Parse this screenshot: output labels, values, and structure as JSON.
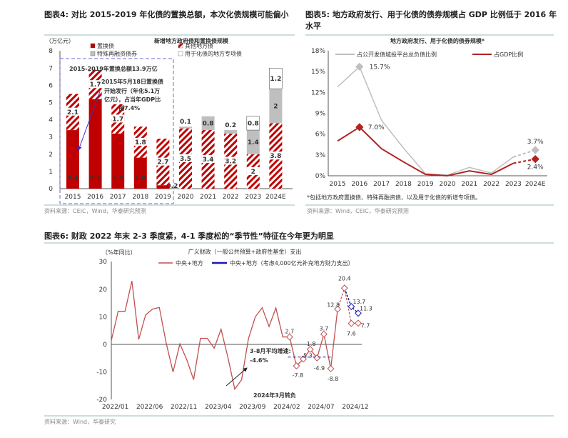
{
  "colors": {
    "red": "#c00000",
    "darkred": "#b22222",
    "gray": "#bfbfbf",
    "blue": "#1a1aaa",
    "line_red": "#c0504d"
  },
  "fig4": {
    "title": "图表4:  对比 2015-2019 年化债的置换总额，本次化债规模可能偏小",
    "source": "资料来源：CEIC，Wind，华泰研究预测",
    "chart_data": {
      "type": "bar",
      "stacked": true,
      "title": "新增地方政府债和置换债规模",
      "ylabel": "（万亿元）",
      "ylim": [
        0,
        8
      ],
      "yticks": [
        "0",
        "1",
        "2",
        "3",
        "4",
        "5",
        "6",
        "7",
        "8"
      ],
      "categories": [
        "2015",
        "2016",
        "2017",
        "2018",
        "2019",
        "2020",
        "2021",
        "2022",
        "2023",
        "2024E"
      ],
      "series": [
        {
          "name": "置换债",
          "values": [
            3.4,
            5.2,
            3.2,
            1.8,
            0.2,
            0,
            0,
            0,
            0,
            0
          ]
        },
        {
          "name": "其他地方债",
          "values": [
            2.1,
            1.7,
            1.7,
            1.8,
            2.7,
            3.5,
            3.4,
            3.2,
            2.0,
            3.8
          ]
        },
        {
          "name": "特殊再融资债券",
          "values": [
            0,
            0,
            0,
            0,
            0,
            0.1,
            0.8,
            0.2,
            1.4,
            2.0
          ]
        },
        {
          "name": "用于化债的地方专项债",
          "values": [
            0,
            0,
            0,
            0,
            0,
            0,
            0,
            0,
            0.8,
            1.2
          ]
        }
      ],
      "annotations": [
        "2015-2019年置换总额13.9万亿",
        "2015年5月18日置换债",
        "开始发行（年化5.1万",
        "亿元），占当年GDP比",
        "例7.4%"
      ]
    }
  },
  "fig5": {
    "title_line1": "图表5:  地方政府发行、用于化债的债券规模占 GDP 比例低于 2016 年",
    "title_line2": "水平",
    "footnote": "*包括地方政府置换债、特殊再融资债、以及用于化债的新增专项债。",
    "source": "资料来源：Wind，CEIC，华泰研究预测",
    "chart_data": {
      "type": "line",
      "title": "地方政府发行、用于化债的债券规模*",
      "ylim": [
        0,
        18
      ],
      "yticks": [
        "0%",
        "3%",
        "6%",
        "9%",
        "12%",
        "15%",
        "18%"
      ],
      "categories": [
        "2015",
        "2016",
        "2017",
        "2018",
        "2019",
        "2020",
        "2021",
        "2022",
        "2023",
        "2024E"
      ],
      "series": [
        {
          "name": "占公开发债城投平台总负债比例",
          "values": [
            12.8,
            15.7,
            8.0,
            4.0,
            0.3,
            0.1,
            1.2,
            0.4,
            2.7,
            3.7
          ]
        },
        {
          "name": "占GDP比例",
          "values": [
            5.0,
            7.0,
            3.9,
            2.0,
            0.2,
            0.0,
            0.7,
            0.2,
            1.8,
            2.4
          ]
        }
      ],
      "data_labels": {
        "gray_2016": "15.7%",
        "gray_2024E": "3.7%",
        "red_2016": "7.0%",
        "red_2024E": "2.4%"
      }
    }
  },
  "fig6": {
    "title": "图表6:  财政 2022 年末 2-3 季度紧，4-1 季度松的“季节性”特征在今年更为明显",
    "source": "资料来源：Wind，华泰研究",
    "chart_data": {
      "type": "line",
      "title": "广义财政（一般公共预算+政府性基金）支出",
      "ylabel": "（%年同比）",
      "ylim": [
        -20,
        30
      ],
      "yticks": [
        "-20",
        "-10",
        "0",
        "10",
        "20",
        "30"
      ],
      "xticks": [
        {
          "i": 1,
          "label": "2022/01"
        },
        {
          "i": 6,
          "label": "2022/06"
        },
        {
          "i": 11,
          "label": "2022/11"
        },
        {
          "i": 16,
          "label": "2023/04"
        },
        {
          "i": 21,
          "label": "2023/09"
        },
        {
          "i": 26,
          "label": "2024/02"
        },
        {
          "i": 31,
          "label": "2024/07"
        },
        {
          "i": 36,
          "label": "2024/12"
        }
      ],
      "series": [
        {
          "name": "中央+地方",
          "values": [
            1.4,
            12,
            12,
            23,
            1.8,
            10.7,
            12.8,
            13.4,
            0.5,
            -10,
            0.2,
            -5.5,
            -12.8,
            2.2,
            2.2,
            -1.4,
            5.5,
            -4.7,
            -16.2,
            -12.8,
            2.1,
            10,
            13.3,
            6.5,
            13.2,
            2.7,
            2.7,
            -7.8,
            -5.3,
            -1.8,
            -4.9,
            3.7,
            -8.8,
            12.8,
            20.4,
            7.6,
            7.7
          ]
        },
        {
          "name": "中央+地方（考虑4,000亿元补充地方财力支出）",
          "start_index": 34,
          "values": [
            20.4,
            13.7,
            11.3
          ]
        }
      ],
      "point_labels": [
        {
          "i": 26,
          "text": "2.7"
        },
        {
          "i": 27,
          "text": "-7.8"
        },
        {
          "i": 28,
          "text": "-5.3"
        },
        {
          "i": 29,
          "text": "-1.8"
        },
        {
          "i": 30,
          "text": "-4.9"
        },
        {
          "i": 31,
          "text": "3.7"
        },
        {
          "i": 32,
          "text": "-8.8"
        },
        {
          "i": 33,
          "text": "12.8"
        },
        {
          "i": 34,
          "text": "20.4"
        },
        {
          "i": 35,
          "text": "7.6"
        },
        {
          "i": 36,
          "text": "7.7"
        }
      ],
      "blue_labels": [
        {
          "i": 35,
          "text": "13.7"
        },
        {
          "i": 36,
          "text": "11.3"
        }
      ],
      "avg": {
        "label": "3-8月平均增速:",
        "value_text": "-4.6%",
        "value": -4.6,
        "from": 27,
        "to": 32
      },
      "arrow_note": "2024年3月转负"
    }
  }
}
